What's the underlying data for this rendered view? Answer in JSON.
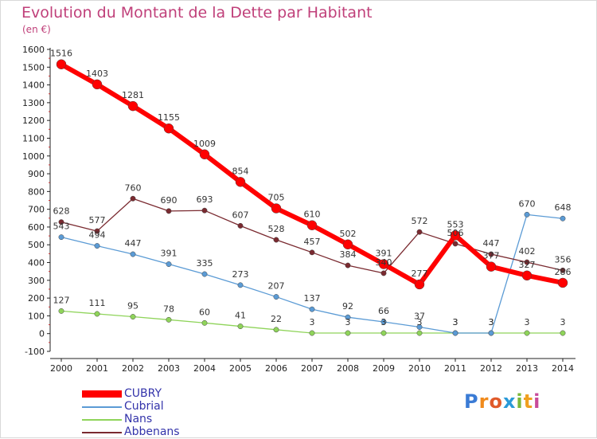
{
  "title": "Evolution du Montant de la Dette par Habitant",
  "unit_label": "(en €)",
  "logo_text": "Proxiti",
  "chart_data": {
    "type": "line",
    "title": "Evolution du Montant de la Dette par Habitant",
    "ylabel": "(en €)",
    "xlabel": "",
    "x": [
      2000,
      2001,
      2002,
      2003,
      2004,
      2005,
      2006,
      2007,
      2008,
      2009,
      2010,
      2011,
      2012,
      2013,
      2014
    ],
    "ylim": [
      -100,
      1600
    ],
    "yticks": [
      -100,
      0,
      100,
      200,
      300,
      400,
      500,
      600,
      700,
      800,
      900,
      1000,
      1100,
      1200,
      1300,
      1400,
      1500,
      1600
    ],
    "grid": false,
    "legend_position": "bottom-left",
    "series": [
      {
        "name": "CUBRY",
        "color": "#ff0000",
        "values": [
          1516,
          1403,
          1281,
          1155,
          1009,
          854,
          705,
          610,
          502,
          391,
          277,
          553,
          377,
          327,
          286
        ]
      },
      {
        "name": "Cubrial",
        "color": "#5b9bd5",
        "values": [
          543,
          494,
          447,
          391,
          335,
          273,
          207,
          137,
          92,
          66,
          37,
          3,
          3,
          670,
          648
        ]
      },
      {
        "name": "Nans",
        "color": "#8fd45a",
        "values": [
          127,
          111,
          95,
          78,
          60,
          41,
          22,
          3,
          3,
          3,
          3,
          3,
          3,
          3,
          3
        ]
      },
      {
        "name": "Abbenans",
        "color": "#7a2a30",
        "values": [
          628,
          577,
          760,
          690,
          693,
          607,
          528,
          457,
          384,
          340,
          572,
          506,
          447,
          402,
          356
        ]
      }
    ]
  }
}
